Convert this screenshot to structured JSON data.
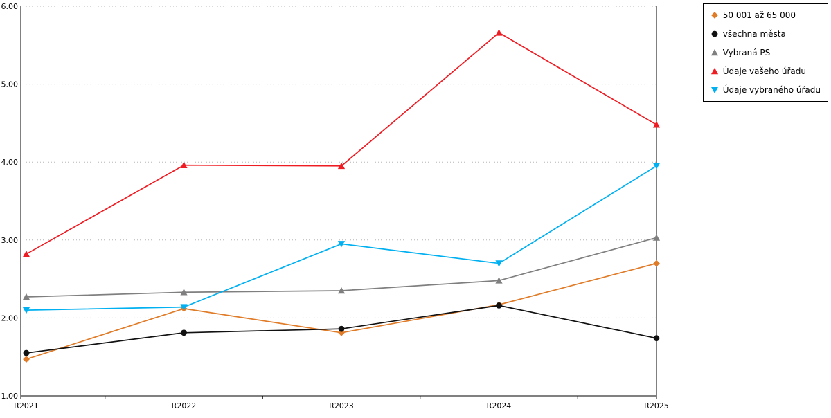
{
  "chart_data": {
    "type": "line",
    "x": [
      "R2021",
      "R2022",
      "R2023",
      "R2024",
      "R2025"
    ],
    "series": [
      {
        "name": "50 001 až 65 000",
        "color": "#e07b28",
        "marker": "diamond",
        "values": [
          1.47,
          2.12,
          1.81,
          2.17,
          2.7
        ]
      },
      {
        "name": "všechna města",
        "color": "#111111",
        "marker": "circle",
        "values": [
          1.55,
          1.81,
          1.86,
          2.16,
          1.74
        ]
      },
      {
        "name": "Vybraná PS",
        "color": "#7f7f7f",
        "marker": "triangle-up",
        "values": [
          2.27,
          2.33,
          2.35,
          2.48,
          3.03
        ]
      },
      {
        "name": "Údaje vašeho úřadu",
        "color": "#ee1c23",
        "marker": "triangle-up",
        "values": [
          2.82,
          3.96,
          3.95,
          5.66,
          4.48
        ]
      },
      {
        "name": "Údaje vybraného úřadu",
        "color": "#00b0f0",
        "marker": "triangle-down",
        "values": [
          2.1,
          2.14,
          2.95,
          2.7,
          3.95
        ]
      }
    ],
    "ylim": [
      1.0,
      6.0
    ],
    "yticks": [
      1,
      2,
      3,
      4,
      5,
      6
    ],
    "ytick_labels": [
      "1.00",
      "2.00",
      "3.00",
      "4.00",
      "5.00",
      "6.00"
    ],
    "grid": true,
    "gridline_style": "dotted",
    "gridline_color": "#b5b5b5",
    "axis_color": "#000000",
    "legend_position": "top-right"
  }
}
